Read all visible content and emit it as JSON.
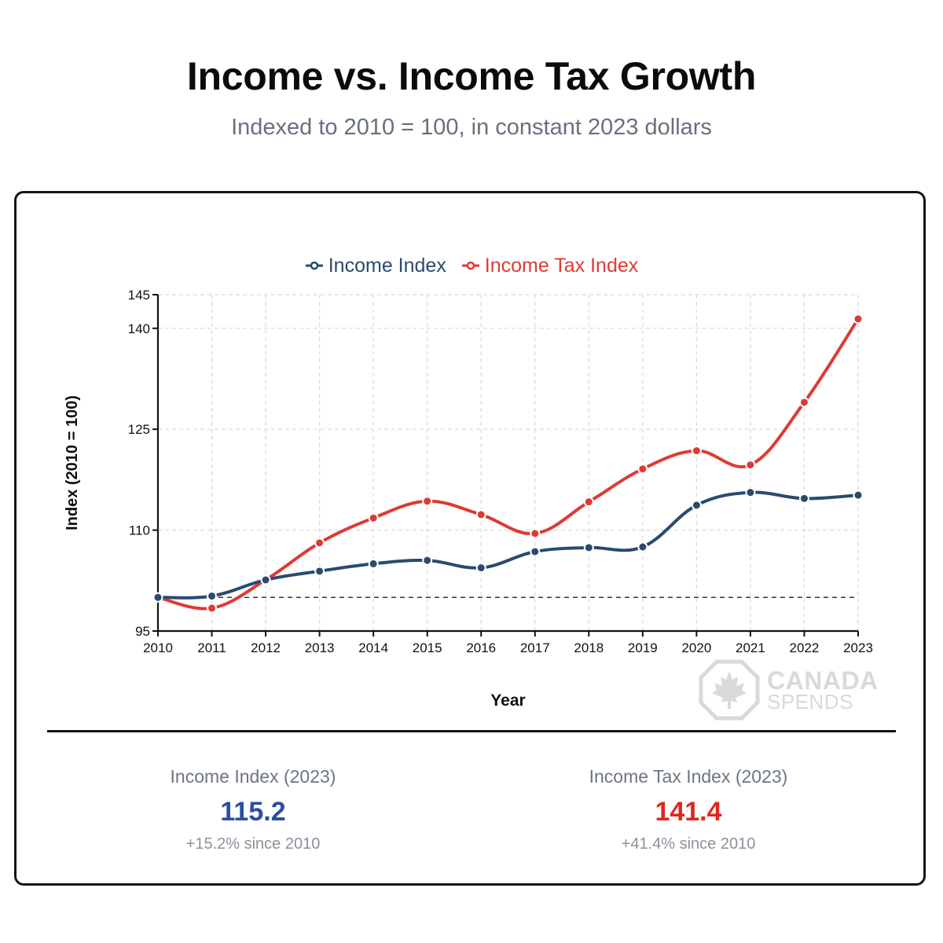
{
  "header": {
    "title": "Income vs. Income Tax Growth",
    "subtitle": "Indexed to 2010 = 100, in constant 2023 dollars"
  },
  "colors": {
    "income": "#2b4a6f",
    "tax": "#de3a34",
    "income_value": "#2c4fa3",
    "tax_value": "#e0271e"
  },
  "chart_data": {
    "type": "line",
    "title": "",
    "xlabel": "Year",
    "ylabel": "Index (2010 = 100)",
    "x": [
      2010,
      2011,
      2012,
      2013,
      2014,
      2015,
      2016,
      2017,
      2018,
      2019,
      2020,
      2021,
      2022,
      2023
    ],
    "yticks": [
      95,
      110,
      125,
      140,
      145
    ],
    "ylim": [
      95,
      145
    ],
    "baseline": 100,
    "legend": "top-center",
    "grid": true,
    "series": [
      {
        "name": "Income Index",
        "color": "#2b4a6f",
        "values": [
          100.0,
          100.2,
          102.6,
          103.9,
          105.0,
          105.5,
          104.4,
          106.8,
          107.4,
          107.5,
          113.7,
          115.6,
          114.7,
          115.2
        ]
      },
      {
        "name": "Income Tax Index",
        "color": "#de3a34",
        "values": [
          100.0,
          98.4,
          102.6,
          108.1,
          111.8,
          114.3,
          112.3,
          109.5,
          114.2,
          119.1,
          121.8,
          119.7,
          129.0,
          141.4
        ]
      }
    ]
  },
  "stats": {
    "income": {
      "label": "Income Index (2023)",
      "value": "115.2",
      "change": "+15.2% since 2010"
    },
    "tax": {
      "label": "Income Tax Index (2023)",
      "value": "141.4",
      "change": "+41.4% since 2010"
    }
  },
  "watermark": {
    "line1": "CANADA",
    "line2": "SPENDS",
    "icon": "maple-leaf-octagon-icon"
  }
}
